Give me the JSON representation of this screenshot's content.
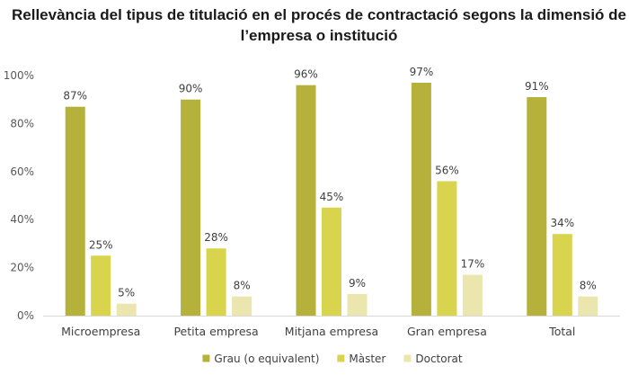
{
  "chart_data": {
    "type": "bar",
    "title_lines": [
      "Rellevància del tipus de titulació en el procés de contractació segons la dimensió de",
      "l’empresa o institució"
    ],
    "categories": [
      "Microempresa",
      "Petita empresa",
      "Mitjana empresa",
      "Gran empresa",
      "Total"
    ],
    "series": [
      {
        "name": "Grau (o equivalent)",
        "color": "#b5b13a",
        "values": [
          87,
          90,
          96,
          97,
          91
        ]
      },
      {
        "name": "Màster",
        "color": "#d9d44e",
        "values": [
          25,
          28,
          45,
          56,
          34
        ]
      },
      {
        "name": "Doctorat",
        "color": "#ebe6ae",
        "values": [
          5,
          8,
          9,
          17,
          8
        ]
      }
    ],
    "value_suffix": "%",
    "yticks": [
      "0%",
      "20%",
      "40%",
      "60%",
      "80%",
      "100%"
    ],
    "ylim": [
      0,
      100
    ],
    "grid": false,
    "legend_position": "bottom"
  }
}
